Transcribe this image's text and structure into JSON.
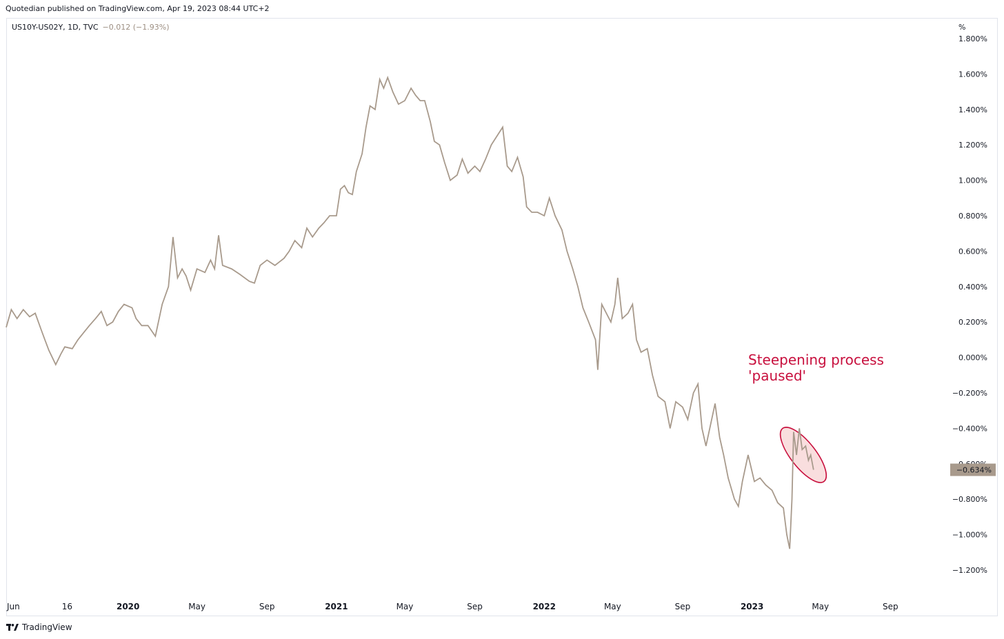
{
  "header": {
    "published_text": "Quotedian published on TradingView.com, Apr 19, 2023 08:44 UTC+2"
  },
  "legend": {
    "symbol": "US10Y-US02Y, 1D, TVC",
    "change": "−0.012 (−1.93%)"
  },
  "annotation": {
    "text": "Steepening process\n'paused'",
    "color": "#c8103e"
  },
  "footer": {
    "brand": "TradingView",
    "logo_icon": "tradingview-logo-icon"
  },
  "colors": {
    "line": "#a89a8c",
    "price_label_bg": "#a89a8c",
    "highlight_fill": "#f9dede",
    "highlight_stroke": "#c8103e"
  },
  "chart_data": {
    "type": "line",
    "y_unit": "%",
    "ylim": [
      -1.3,
      1.8
    ],
    "y_ticks": [
      -1.2,
      -1.0,
      -0.8,
      -0.6,
      -0.4,
      -0.2,
      0.0,
      0.2,
      0.4,
      0.6,
      0.8,
      1.0,
      1.2,
      1.4,
      1.6,
      1.8
    ],
    "y_tick_labels": [
      "−1.200%",
      "−1.000%",
      "−0.800%",
      "−0.600%",
      "−0.400%",
      "−0.200%",
      "0.000%",
      "0.200%",
      "0.400%",
      "0.600%",
      "0.800%",
      "1.000%",
      "1.200%",
      "1.400%",
      "1.600%",
      "1.800%"
    ],
    "xlim": [
      "2019-06-01",
      "2023-12-15"
    ],
    "x_ticks": [
      {
        "date": "2019-06-01",
        "label": "Jun",
        "bold": false
      },
      {
        "date": "2019-09-16",
        "label": "16",
        "bold": false
      },
      {
        "date": "2020-01-01",
        "label": "2020",
        "bold": true
      },
      {
        "date": "2020-05-01",
        "label": "May",
        "bold": false
      },
      {
        "date": "2020-09-01",
        "label": "Sep",
        "bold": false
      },
      {
        "date": "2021-01-01",
        "label": "2021",
        "bold": true
      },
      {
        "date": "2021-05-01",
        "label": "May",
        "bold": false
      },
      {
        "date": "2021-09-01",
        "label": "Sep",
        "bold": false
      },
      {
        "date": "2022-01-01",
        "label": "2022",
        "bold": true
      },
      {
        "date": "2022-05-01",
        "label": "May",
        "bold": false
      },
      {
        "date": "2022-09-01",
        "label": "Sep",
        "bold": false
      },
      {
        "date": "2023-01-01",
        "label": "2023",
        "bold": true
      },
      {
        "date": "2023-05-01",
        "label": "May",
        "bold": false
      },
      {
        "date": "2023-09-01",
        "label": "Sep",
        "bold": false
      }
    ],
    "last_value": -0.634,
    "last_value_label": "−0.634%",
    "series": [
      {
        "points": [
          [
            "2019-06-01",
            0.17
          ],
          [
            "2019-06-10",
            0.27
          ],
          [
            "2019-06-20",
            0.22
          ],
          [
            "2019-07-01",
            0.27
          ],
          [
            "2019-07-12",
            0.23
          ],
          [
            "2019-07-22",
            0.25
          ],
          [
            "2019-08-01",
            0.16
          ],
          [
            "2019-08-08",
            0.1
          ],
          [
            "2019-08-15",
            0.04
          ],
          [
            "2019-08-27",
            -0.04
          ],
          [
            "2019-09-05",
            0.02
          ],
          [
            "2019-09-12",
            0.06
          ],
          [
            "2019-09-25",
            0.05
          ],
          [
            "2019-10-05",
            0.1
          ],
          [
            "2019-10-15",
            0.14
          ],
          [
            "2019-10-25",
            0.18
          ],
          [
            "2019-11-05",
            0.22
          ],
          [
            "2019-11-15",
            0.26
          ],
          [
            "2019-11-25",
            0.18
          ],
          [
            "2019-12-05",
            0.2
          ],
          [
            "2019-12-15",
            0.26
          ],
          [
            "2019-12-25",
            0.3
          ],
          [
            "2020-01-08",
            0.28
          ],
          [
            "2020-01-15",
            0.22
          ],
          [
            "2020-01-25",
            0.18
          ],
          [
            "2020-02-05",
            0.18
          ],
          [
            "2020-02-18",
            0.12
          ],
          [
            "2020-03-01",
            0.3
          ],
          [
            "2020-03-12",
            0.4
          ],
          [
            "2020-03-20",
            0.68
          ],
          [
            "2020-03-28",
            0.45
          ],
          [
            "2020-04-05",
            0.5
          ],
          [
            "2020-04-12",
            0.46
          ],
          [
            "2020-04-20",
            0.38
          ],
          [
            "2020-05-01",
            0.5
          ],
          [
            "2020-05-15",
            0.48
          ],
          [
            "2020-05-25",
            0.55
          ],
          [
            "2020-06-01",
            0.5
          ],
          [
            "2020-06-08",
            0.69
          ],
          [
            "2020-06-15",
            0.52
          ],
          [
            "2020-07-01",
            0.5
          ],
          [
            "2020-07-15",
            0.47
          ],
          [
            "2020-08-01",
            0.43
          ],
          [
            "2020-08-10",
            0.42
          ],
          [
            "2020-08-20",
            0.52
          ],
          [
            "2020-09-01",
            0.55
          ],
          [
            "2020-09-15",
            0.52
          ],
          [
            "2020-10-01",
            0.56
          ],
          [
            "2020-10-10",
            0.6
          ],
          [
            "2020-10-20",
            0.66
          ],
          [
            "2020-11-01",
            0.62
          ],
          [
            "2020-11-10",
            0.73
          ],
          [
            "2020-11-20",
            0.68
          ],
          [
            "2020-12-01",
            0.73
          ],
          [
            "2020-12-10",
            0.76
          ],
          [
            "2020-12-20",
            0.8
          ],
          [
            "2021-01-01",
            0.8
          ],
          [
            "2021-01-08",
            0.95
          ],
          [
            "2021-01-15",
            0.97
          ],
          [
            "2021-01-22",
            0.93
          ],
          [
            "2021-01-29",
            0.92
          ],
          [
            "2021-02-05",
            1.05
          ],
          [
            "2021-02-15",
            1.15
          ],
          [
            "2021-02-22",
            1.3
          ],
          [
            "2021-03-01",
            1.42
          ],
          [
            "2021-03-10",
            1.4
          ],
          [
            "2021-03-18",
            1.57
          ],
          [
            "2021-03-25",
            1.52
          ],
          [
            "2021-04-01",
            1.58
          ],
          [
            "2021-04-10",
            1.5
          ],
          [
            "2021-04-20",
            1.43
          ],
          [
            "2021-05-01",
            1.45
          ],
          [
            "2021-05-12",
            1.52
          ],
          [
            "2021-05-20",
            1.48
          ],
          [
            "2021-05-28",
            1.45
          ],
          [
            "2021-06-05",
            1.45
          ],
          [
            "2021-06-15",
            1.33
          ],
          [
            "2021-06-22",
            1.22
          ],
          [
            "2021-07-01",
            1.2
          ],
          [
            "2021-07-10",
            1.1
          ],
          [
            "2021-07-20",
            1.0
          ],
          [
            "2021-08-01",
            1.03
          ],
          [
            "2021-08-10",
            1.12
          ],
          [
            "2021-08-20",
            1.04
          ],
          [
            "2021-09-01",
            1.08
          ],
          [
            "2021-09-10",
            1.05
          ],
          [
            "2021-09-20",
            1.12
          ],
          [
            "2021-09-30",
            1.2
          ],
          [
            "2021-10-10",
            1.25
          ],
          [
            "2021-10-20",
            1.3
          ],
          [
            "2021-10-28",
            1.08
          ],
          [
            "2021-11-05",
            1.05
          ],
          [
            "2021-11-15",
            1.13
          ],
          [
            "2021-11-25",
            1.02
          ],
          [
            "2021-12-01",
            0.85
          ],
          [
            "2021-12-10",
            0.82
          ],
          [
            "2021-12-20",
            0.82
          ],
          [
            "2022-01-01",
            0.8
          ],
          [
            "2022-01-10",
            0.9
          ],
          [
            "2022-01-20",
            0.8
          ],
          [
            "2022-02-01",
            0.72
          ],
          [
            "2022-02-10",
            0.6
          ],
          [
            "2022-02-20",
            0.5
          ],
          [
            "2022-03-01",
            0.4
          ],
          [
            "2022-03-10",
            0.28
          ],
          [
            "2022-03-20",
            0.2
          ],
          [
            "2022-04-01",
            0.1
          ],
          [
            "2022-04-05",
            -0.07
          ],
          [
            "2022-04-12",
            0.3
          ],
          [
            "2022-04-20",
            0.25
          ],
          [
            "2022-04-28",
            0.2
          ],
          [
            "2022-05-05",
            0.3
          ],
          [
            "2022-05-10",
            0.45
          ],
          [
            "2022-05-18",
            0.22
          ],
          [
            "2022-05-28",
            0.25
          ],
          [
            "2022-06-05",
            0.3
          ],
          [
            "2022-06-12",
            0.1
          ],
          [
            "2022-06-20",
            0.03
          ],
          [
            "2022-07-01",
            0.05
          ],
          [
            "2022-07-10",
            -0.1
          ],
          [
            "2022-07-20",
            -0.22
          ],
          [
            "2022-08-01",
            -0.25
          ],
          [
            "2022-08-10",
            -0.4
          ],
          [
            "2022-08-20",
            -0.25
          ],
          [
            "2022-09-01",
            -0.28
          ],
          [
            "2022-09-10",
            -0.35
          ],
          [
            "2022-09-20",
            -0.2
          ],
          [
            "2022-09-28",
            -0.15
          ],
          [
            "2022-10-05",
            -0.4
          ],
          [
            "2022-10-12",
            -0.5
          ],
          [
            "2022-10-20",
            -0.38
          ],
          [
            "2022-10-28",
            -0.26
          ],
          [
            "2022-11-05",
            -0.45
          ],
          [
            "2022-11-12",
            -0.55
          ],
          [
            "2022-11-20",
            -0.68
          ],
          [
            "2022-12-01",
            -0.8
          ],
          [
            "2022-12-08",
            -0.84
          ],
          [
            "2022-12-15",
            -0.7
          ],
          [
            "2022-12-25",
            -0.55
          ],
          [
            "2023-01-05",
            -0.7
          ],
          [
            "2023-01-15",
            -0.68
          ],
          [
            "2023-01-25",
            -0.72
          ],
          [
            "2023-02-05",
            -0.75
          ],
          [
            "2023-02-15",
            -0.82
          ],
          [
            "2023-02-25",
            -0.85
          ],
          [
            "2023-03-03",
            -1.0
          ],
          [
            "2023-03-08",
            -1.08
          ],
          [
            "2023-03-12",
            -0.8
          ],
          [
            "2023-03-15",
            -0.42
          ],
          [
            "2023-03-20",
            -0.55
          ],
          [
            "2023-03-25",
            -0.4
          ],
          [
            "2023-03-30",
            -0.52
          ],
          [
            "2023-04-05",
            -0.5
          ],
          [
            "2023-04-10",
            -0.58
          ],
          [
            "2023-04-14",
            -0.55
          ],
          [
            "2023-04-19",
            -0.634
          ]
        ]
      }
    ],
    "highlight_ellipse": {
      "x_center": "2023-04-01",
      "y_center": -0.55,
      "x_radius_days": 22,
      "y_radius": 0.19,
      "rotation": -38
    }
  }
}
